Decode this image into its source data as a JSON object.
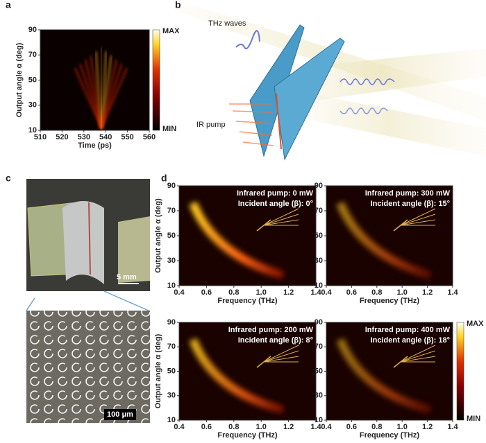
{
  "panel_a": {
    "label": "a",
    "x_label": "Time (ps)",
    "y_label": "Output angle α (deg)",
    "xlim": [
      510,
      560
    ],
    "xticks": [
      510,
      520,
      530,
      540,
      550,
      560
    ],
    "ylim": [
      10,
      90
    ],
    "yticks": [
      10,
      30,
      50,
      70,
      90
    ],
    "colorbar": {
      "max_label": "MAX",
      "min_label": "MIN"
    }
  },
  "panel_b": {
    "label": "b",
    "thz_label": "THz waves",
    "ir_label": "IR pump"
  },
  "panel_c": {
    "label": "c",
    "scale_bar_photo": "5 mm",
    "scale_bar_micro": "100 μm"
  },
  "panel_d": {
    "label": "d",
    "x_label": "Frequency (THz)",
    "y_label": "Output angle α (deg)",
    "xlim": [
      0.4,
      1.4
    ],
    "xticks": [
      0.4,
      0.6,
      0.8,
      {
        "value": 1,
        "label": "1.0"
      },
      1.2,
      1.4
    ],
    "ylim": [
      10,
      90
    ],
    "yticks": [
      10,
      30,
      50,
      70,
      90
    ],
    "colorbar": {
      "max_label": "MAX",
      "min_label": "MIN"
    },
    "subplots": [
      {
        "pump": "Infrared pump: 0 mW",
        "angle": "Incident angle (β): 0°"
      },
      {
        "pump": "Infrared pump: 300 mW",
        "angle": "Incident angle (β): 15°"
      },
      {
        "pump": "Infrared pump: 200 mW",
        "angle": "Incident angle (β): 8°"
      },
      {
        "pump": "Infrared pump: 400 mW",
        "angle": "Incident angle (β): 18°"
      }
    ]
  }
}
